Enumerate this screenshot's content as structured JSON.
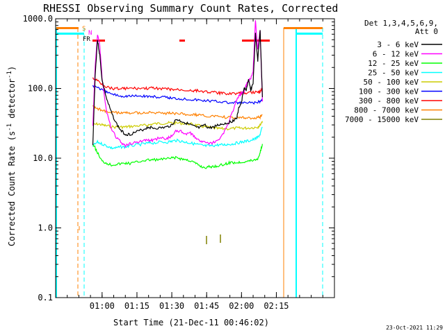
{
  "chart_data": {
    "type": "line",
    "title": "RHESSI Observing Summary Count Rates, Corrected",
    "xlabel": "Start Time (21-Dec-11 00:46:02)",
    "ylabel": "Corrected Count Rate (s⁻¹ detector⁻¹)",
    "ylabel_parts": {
      "main": "Corrected Count Rate (s",
      "sup1": "-1",
      "mid": " detector",
      "sup2": "-1",
      "end": ")"
    },
    "yscale": "log",
    "ylim": [
      0.1,
      1000
    ],
    "y_ticks": [
      {
        "value": 0.1,
        "label": "0.1"
      },
      {
        "value": 1,
        "label": "1.0"
      },
      {
        "value": 10,
        "label": "10.0"
      },
      {
        "value": 100,
        "label": "100.0"
      },
      {
        "value": 1000,
        "label": "1000.0"
      }
    ],
    "xlim": [
      40,
      160
    ],
    "x_ticks": [
      {
        "value": 60,
        "label": "01:00"
      },
      {
        "value": 75,
        "label": "01:15"
      },
      {
        "value": 90,
        "label": "01:30"
      },
      {
        "value": 105,
        "label": "01:45"
      },
      {
        "value": 120,
        "label": "02:00"
      },
      {
        "value": 135,
        "label": "02:15"
      }
    ],
    "legend": {
      "header1": "Det 1,3,4,5,6,9,",
      "header2": "Att 0",
      "placement": "right"
    },
    "series": [
      {
        "name": "3 - 6 keV",
        "color": "#000000",
        "x": [
          56,
          57,
          58,
          59,
          60,
          62,
          64,
          66,
          68,
          70,
          72,
          75,
          78,
          80,
          82,
          85,
          88,
          90,
          92,
          94,
          96,
          98,
          100,
          102,
          104,
          106,
          108,
          110,
          112,
          114,
          116,
          118,
          119,
          120,
          121,
          122,
          123,
          124,
          125,
          126,
          127,
          128,
          129
        ],
        "y": [
          15,
          150,
          500,
          300,
          130,
          70,
          45,
          32,
          25,
          22,
          22,
          24,
          26,
          28,
          27,
          27,
          28,
          30,
          36,
          34,
          32,
          30,
          28,
          27,
          30,
          27,
          28,
          30,
          31,
          32,
          34,
          38,
          55,
          62,
          100,
          95,
          130,
          95,
          120,
          600,
          250,
          700,
          75
        ]
      },
      {
        "name": "6 - 12 keV",
        "color": "#ff00ff",
        "x": [
          56,
          57,
          58,
          59,
          60,
          62,
          64,
          66,
          68,
          70,
          72,
          75,
          78,
          80,
          82,
          85,
          88,
          90,
          92,
          94,
          96,
          98,
          100,
          102,
          104,
          106,
          108,
          110,
          112,
          114,
          116,
          118,
          119,
          120,
          121,
          122,
          123,
          124,
          125,
          126,
          127,
          128,
          129
        ],
        "y": [
          28,
          200,
          600,
          420,
          140,
          45,
          26,
          20,
          17,
          15,
          16,
          17,
          18,
          18,
          18,
          20,
          19,
          21,
          25,
          24,
          22,
          23,
          20,
          18,
          17,
          16,
          17,
          18,
          22,
          30,
          45,
          70,
          80,
          85,
          90,
          110,
          130,
          140,
          180,
          950,
          350,
          700,
          65
        ]
      },
      {
        "name": "12 - 25 keV",
        "color": "#00ff00",
        "x": [
          56,
          57,
          58,
          60,
          62,
          64,
          66,
          68,
          70,
          72,
          75,
          78,
          80,
          82,
          85,
          88,
          90,
          92,
          94,
          96,
          98,
          100,
          102,
          104,
          106,
          108,
          110,
          112,
          114,
          116,
          118,
          120,
          122,
          124,
          126,
          127,
          128,
          129
        ],
        "y": [
          16,
          14,
          12,
          9,
          8.5,
          8,
          8.2,
          8.3,
          8.5,
          8.4,
          8.8,
          9.3,
          9.4,
          9.5,
          9.6,
          9.8,
          10,
          10.2,
          9.8,
          9.5,
          9.2,
          8.5,
          7.8,
          7.3,
          7.5,
          7.6,
          7.8,
          8.0,
          8.5,
          8.7,
          8.6,
          8.8,
          9.0,
          9.2,
          9.5,
          9.8,
          12,
          16
        ]
      },
      {
        "name": "25 - 50 keV",
        "color": "#00ffff",
        "x": [
          56,
          58,
          60,
          62,
          64,
          66,
          68,
          70,
          72,
          75,
          78,
          80,
          82,
          85,
          88,
          90,
          92,
          94,
          96,
          98,
          100,
          102,
          104,
          106,
          108,
          110,
          112,
          114,
          116,
          118,
          120,
          122,
          124,
          126,
          127,
          128,
          129
        ],
        "y": [
          15,
          17,
          16,
          15,
          14,
          14,
          14.5,
          14.5,
          15,
          15.5,
          16,
          16.5,
          16.5,
          17,
          17,
          17.5,
          18,
          17.5,
          17,
          16.5,
          16,
          15.5,
          15,
          15,
          15.2,
          15.5,
          15.5,
          15.8,
          16,
          16.5,
          17,
          17.5,
          18,
          19,
          20,
          22,
          28
        ]
      },
      {
        "name": "50 - 100 keV",
        "color": "#cccc00",
        "x": [
          56,
          58,
          60,
          62,
          65,
          68,
          70,
          72,
          75,
          78,
          80,
          82,
          85,
          88,
          90,
          92,
          95,
          98,
          100,
          102,
          105,
          108,
          110,
          112,
          115,
          118,
          120,
          122,
          125,
          127,
          128,
          129
        ],
        "y": [
          30,
          31,
          30,
          29,
          28,
          28,
          28,
          28.5,
          29,
          29.5,
          30,
          31,
          31.5,
          32,
          32,
          32,
          31.5,
          31,
          30,
          29,
          28,
          27,
          26.5,
          26.5,
          26.5,
          27,
          27,
          27,
          27.5,
          28,
          30,
          34
        ]
      },
      {
        "name": "100 - 300 keV",
        "color": "#0000ff",
        "x": [
          56,
          58,
          60,
          62,
          65,
          68,
          70,
          72,
          75,
          78,
          80,
          82,
          85,
          88,
          90,
          92,
          95,
          98,
          100,
          102,
          105,
          108,
          110,
          112,
          115,
          118,
          120,
          122,
          125,
          127,
          128,
          129
        ],
        "y": [
          110,
          105,
          95,
          88,
          82,
          78,
          78,
          78,
          78,
          78,
          77,
          76,
          75,
          74,
          73,
          72,
          71,
          70,
          69,
          68,
          67,
          66,
          65,
          64,
          62,
          62,
          62,
          62,
          62,
          63,
          65,
          70
        ]
      },
      {
        "name": "300 - 800 keV",
        "color": "#ff0000",
        "x": [
          56,
          58,
          60,
          62,
          65,
          68,
          70,
          72,
          75,
          78,
          80,
          82,
          85,
          88,
          90,
          92,
          95,
          98,
          100,
          102,
          105,
          108,
          110,
          112,
          115,
          118,
          120,
          122,
          125,
          127,
          128,
          129
        ],
        "y": [
          140,
          130,
          115,
          105,
          100,
          100,
          100,
          100,
          100,
          100,
          100,
          101,
          100,
          98,
          96,
          96,
          95,
          94,
          93,
          92,
          90,
          88,
          86,
          85,
          85,
          85,
          86,
          87,
          88,
          88,
          90,
          100
        ]
      },
      {
        "name": "800 - 7000 keV",
        "color": "#ff8000",
        "x": [
          56,
          58,
          60,
          62,
          65,
          68,
          70,
          72,
          75,
          78,
          80,
          82,
          85,
          88,
          90,
          92,
          95,
          98,
          100,
          102,
          105,
          108,
          110,
          112,
          115,
          118,
          120,
          122,
          125,
          127,
          128,
          129
        ],
        "y": [
          55,
          52,
          48,
          46,
          45,
          45,
          45,
          45,
          45,
          45,
          45,
          45,
          44,
          44,
          44,
          43,
          43,
          42,
          42,
          41,
          40,
          40,
          39,
          39,
          38,
          38,
          38,
          38,
          38,
          38,
          39,
          42
        ]
      },
      {
        "name": "7000 - 15000 keV",
        "color": "#808000",
        "x": [],
        "y": []
      }
    ],
    "annotations": [
      {
        "text": "S",
        "color": "#ff8000"
      },
      {
        "text": "N",
        "color": "#ff00ff"
      },
      {
        "text": "FR",
        "color": "#000000"
      }
    ],
    "footer": "23-Oct-2021 11:29"
  }
}
